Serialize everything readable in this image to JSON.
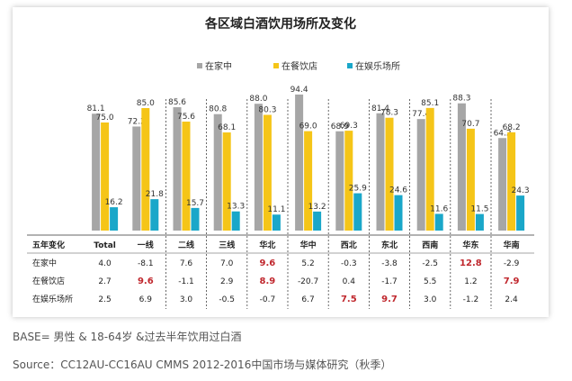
{
  "chart_data": {
    "type": "bar",
    "title": "各区域白酒饮用场所及变化",
    "categories": [
      "Total",
      "一线",
      "二线",
      "三线",
      "华北",
      "华中",
      "西北",
      "东北",
      "西南",
      "华东",
      "华南"
    ],
    "series": [
      {
        "name": "在家中",
        "color": "#a6a6a6",
        "values": [
          81.1,
          72.2,
          85.6,
          80.8,
          88.0,
          94.4,
          68.9,
          81.4,
          77.4,
          88.3,
          64.2
        ]
      },
      {
        "name": "在餐饮店",
        "color": "#f5c518",
        "values": [
          75.0,
          85.0,
          75.6,
          68.1,
          80.3,
          69.0,
          69.3,
          78.3,
          85.1,
          70.7,
          68.2
        ]
      },
      {
        "name": "在娱乐场所",
        "color": "#1aa7c9",
        "values": [
          16.2,
          21.8,
          15.7,
          13.3,
          11.1,
          13.2,
          25.9,
          24.6,
          11.6,
          11.5,
          24.3
        ]
      }
    ],
    "ylim": [
      0,
      100
    ],
    "legend": "top",
    "grid": false
  },
  "change_table": {
    "header": "五年变化",
    "rows": [
      {
        "label": "在家中",
        "values": [
          "4.0",
          "-8.1",
          "7.6",
          "7.0",
          "9.6",
          "5.2",
          "-0.3",
          "-3.8",
          "-2.5",
          "12.8",
          "-2.9"
        ],
        "highlight": [
          false,
          false,
          false,
          false,
          true,
          false,
          false,
          false,
          false,
          true,
          false
        ]
      },
      {
        "label": "在餐饮店",
        "values": [
          "2.7",
          "9.6",
          "-1.1",
          "2.9",
          "8.9",
          "-20.7",
          "0.4",
          "-1.7",
          "5.5",
          "1.2",
          "7.9"
        ],
        "highlight": [
          false,
          true,
          false,
          false,
          true,
          false,
          false,
          false,
          false,
          false,
          true
        ]
      },
      {
        "label": "在娱乐场所",
        "values": [
          "2.5",
          "6.9",
          "3.0",
          "-0.5",
          "-0.7",
          "6.7",
          "7.5",
          "9.7",
          "3.0",
          "-1.2",
          "2.4"
        ],
        "highlight": [
          false,
          false,
          false,
          false,
          false,
          false,
          true,
          true,
          false,
          false,
          false
        ]
      }
    ],
    "highlight_color": "#c0272d"
  },
  "notes": {
    "base": "BASE= 男性 & 18-64岁 &过去半年饮用过白酒",
    "source": "Source：CC12AU-CC16AU CMMS 2012-2016中国市场与媒体研究（秋季）"
  }
}
